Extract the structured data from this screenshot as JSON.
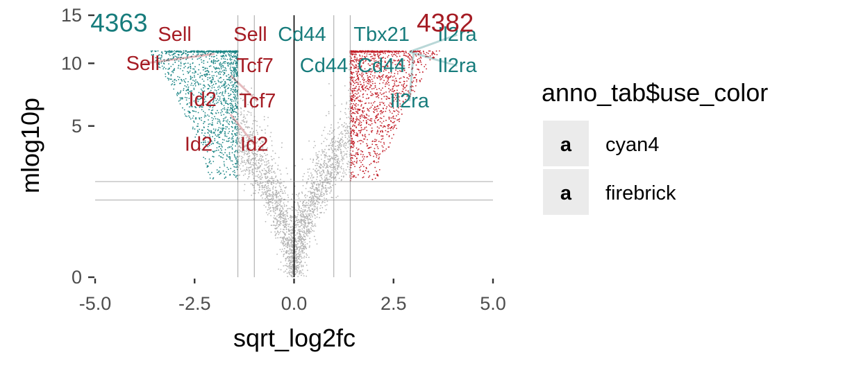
{
  "chart_data": {
    "type": "scatter",
    "subtype": "volcano",
    "xlabel": "sqrt_log2fc",
    "ylabel": "mlog10p",
    "xlim": [
      -5.0,
      5.0
    ],
    "ylim": [
      0,
      15
    ],
    "y_scale": "sqrt",
    "x_ticks": [
      "-5.0",
      "-2.5",
      "0.0",
      "2.5",
      "5.0"
    ],
    "x_tick_values": [
      -5.0,
      -2.5,
      0.0,
      2.5,
      5.0
    ],
    "y_ticks": [
      "0",
      "5",
      "10",
      "15"
    ],
    "y_tick_values": [
      0,
      5,
      10,
      15
    ],
    "grid": false,
    "reference_lines": {
      "vertical": [
        -1.41,
        -1.0,
        0.0,
        1.0,
        1.41
      ],
      "horizontal": [
        1.3,
        2.0
      ]
    },
    "point_cap": 11.2,
    "significance_x": 1.41,
    "significance_y": 2.0,
    "counts": [
      {
        "text": "4363",
        "x": -4.4,
        "y": 13.2,
        "color": "cyan4_teal"
      },
      {
        "text": "4382",
        "x": 3.8,
        "y": 13.2,
        "color": "firebrick_red"
      }
    ],
    "gene_labels": [
      {
        "text": "Sell",
        "x": -3.0,
        "y": 12.2,
        "point_x": -2.6,
        "point_y": 11.1,
        "color": "firebrick_red",
        "segment": false
      },
      {
        "text": "Sell",
        "x": -1.1,
        "y": 12.2,
        "point_x": -1.5,
        "point_y": 11.1,
        "color": "firebrick_red",
        "segment": false
      },
      {
        "text": "Sell",
        "x": -3.8,
        "y": 9.4,
        "point_x": -2.0,
        "point_y": 10.9,
        "color": "firebrick_red",
        "segment": true
      },
      {
        "text": "Tcf7",
        "x": -0.98,
        "y": 9.2,
        "point_x": -1.7,
        "point_y": 9.2,
        "color": "firebrick_red",
        "segment": false
      },
      {
        "text": "Tcf7",
        "x": -0.92,
        "y": 6.3,
        "point_x": -1.6,
        "point_y": 8.9,
        "color": "firebrick_red",
        "segment": true
      },
      {
        "text": "Id2",
        "x": -2.3,
        "y": 6.4,
        "point_x": -1.5,
        "point_y": 6.6,
        "color": "firebrick_red",
        "segment": false
      },
      {
        "text": "Id2",
        "x": -2.4,
        "y": 3.5,
        "point_x": -1.8,
        "point_y": 4.7,
        "color": "firebrick_red",
        "segment": false
      },
      {
        "text": "Id2",
        "x": -1.0,
        "y": 3.5,
        "point_x": -1.6,
        "point_y": 5.8,
        "color": "firebrick_red",
        "segment": true
      },
      {
        "text": "Cd44",
        "x": 0.2,
        "y": 12.2,
        "point_x": 1.1,
        "point_y": 11.1,
        "color": "cyan4_teal",
        "segment": false
      },
      {
        "text": "Tbx21",
        "x": 2.2,
        "y": 12.2,
        "point_x": 1.6,
        "point_y": 11.1,
        "color": "cyan4_teal",
        "segment": false
      },
      {
        "text": "Il2ra",
        "x": 4.1,
        "y": 12.2,
        "point_x": 2.9,
        "point_y": 11.1,
        "color": "cyan4_teal",
        "segment": true
      },
      {
        "text": "Cd44",
        "x": 0.75,
        "y": 9.2,
        "point_x": 1.5,
        "point_y": 9.4,
        "color": "cyan4_teal",
        "segment": false
      },
      {
        "text": "Cd44",
        "x": 2.2,
        "y": 9.2,
        "point_x": 1.8,
        "point_y": 10.0,
        "color": "cyan4_teal",
        "segment": false
      },
      {
        "text": "Il2ra",
        "x": 4.1,
        "y": 9.2,
        "point_x": 2.9,
        "point_y": 11.1,
        "color": "cyan4_teal",
        "segment": true
      },
      {
        "text": "Il2ra",
        "x": 2.9,
        "y": 6.3,
        "point_x": 3.0,
        "point_y": 10.9,
        "color": "cyan4_teal",
        "segment": true
      }
    ],
    "legend": {
      "title": "anno_tab$use_color",
      "placement": "right",
      "glyph": "a",
      "items": [
        {
          "label": "cyan4",
          "color": "firebrick_red"
        },
        {
          "label": "firebrick",
          "color": "cyan4_teal"
        }
      ]
    }
  },
  "colors": {
    "firebrick_red": "#a51c24",
    "cyan4_teal": "#177c7c",
    "point_grey": "#b3b3b3",
    "firebrick_point": "#c21f29",
    "cyan4_point": "#1b8585",
    "ref_line": "#8c8c8c",
    "zero_line": "#000000",
    "tick_text": "#4d4d4d",
    "legend_key_bg": "#ebebeb"
  }
}
